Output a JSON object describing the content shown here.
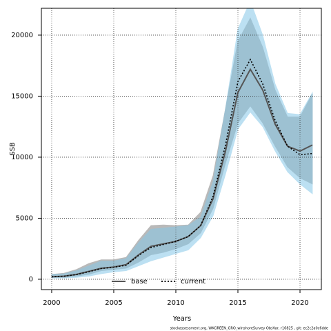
{
  "chart_data": {
    "type": "line",
    "x_label": "Years",
    "y_label": "SSB",
    "footnote": "stockassessment.org, WKGREEN_GRO_wInshoreSurvey ObsVar, r16825 , git: ec2c2a0c6dde",
    "x": [
      2000,
      2001,
      2002,
      2003,
      2004,
      2005,
      2006,
      2007,
      2008,
      2009,
      2010,
      2011,
      2012,
      2013,
      2014,
      2015,
      2016,
      2017,
      2018,
      2019,
      2020,
      2021
    ],
    "series": [
      {
        "name": "base",
        "color": "#555555",
        "dash": "solid",
        "values": [
          200,
          250,
          400,
          650,
          900,
          1000,
          1200,
          2000,
          2700,
          2900,
          3100,
          3500,
          4400,
          6600,
          10500,
          15300,
          17200,
          15500,
          12700,
          10900,
          10500,
          11000
        ]
      },
      {
        "name": "current",
        "color": "#000000",
        "dash": "dotted",
        "values": [
          200,
          250,
          380,
          620,
          880,
          980,
          1150,
          1950,
          2600,
          2850,
          3100,
          3500,
          4400,
          6800,
          11000,
          16200,
          18000,
          16000,
          13000,
          10900,
          10200,
          10300
        ]
      }
    ],
    "bands": [
      {
        "color": "#808080",
        "lower": [
          150,
          150,
          250,
          400,
          700,
          800,
          900,
          1400,
          2000,
          2200,
          2500,
          2900,
          3800,
          5800,
          9500,
          12800,
          14200,
          12800,
          10900,
          9200,
          8300,
          7800
        ],
        "upper": [
          400,
          500,
          800,
          1300,
          1600,
          1600,
          1800,
          3200,
          4400,
          4450,
          4400,
          4450,
          5500,
          8500,
          14000,
          19500,
          21400,
          19000,
          15500,
          13300,
          13300,
          15200
        ]
      },
      {
        "color": "#87c8e8",
        "lower": [
          100,
          100,
          150,
          250,
          450,
          600,
          700,
          1100,
          1500,
          1800,
          2100,
          2400,
          3400,
          5200,
          8600,
          12300,
          13700,
          12500,
          10500,
          8800,
          7800,
          7000
        ],
        "upper": [
          400,
          450,
          700,
          1100,
          1500,
          1500,
          1700,
          3000,
          4100,
          4200,
          4300,
          4400,
          5100,
          8000,
          14000,
          20500,
          22800,
          20000,
          16000,
          13600,
          13500,
          15300
        ]
      }
    ],
    "xlim": [
      1999.17,
      2021.72
    ],
    "ylim": [
      -850,
      22200
    ],
    "xticks": [
      2000,
      2005,
      2010,
      2015,
      2020
    ],
    "yticks": [
      0,
      5000,
      10000,
      15000,
      20000
    ],
    "grid": true,
    "legend": "bottom"
  }
}
